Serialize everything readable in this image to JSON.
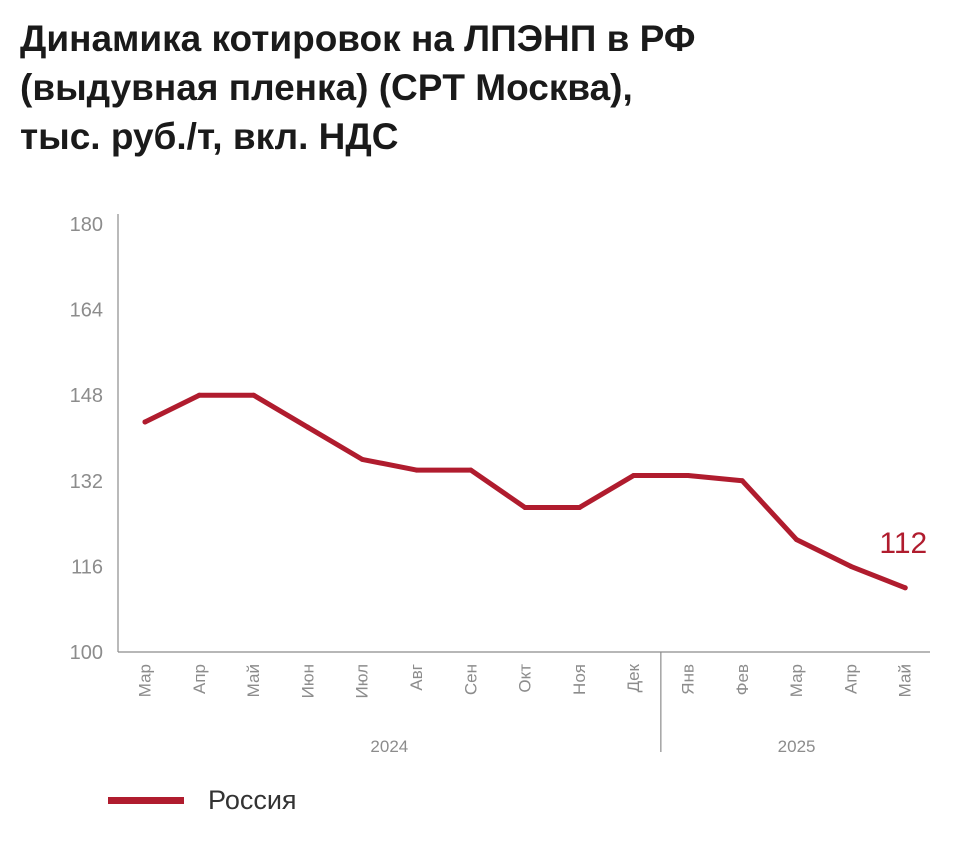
{
  "title_lines": [
    "Динамика котировок на ЛПЭНП в РФ",
    "(выдувная пленка) (CPT Москва),",
    "тыс. руб./т, вкл. НДС"
  ],
  "colors": {
    "series": "#b01c2e",
    "axis": "#8c8c8c",
    "text": "#1a1a1a"
  },
  "chart_data": {
    "type": "line",
    "title": "Динамика котировок на ЛПЭНП в РФ (выдувная пленка) (CPT Москва), тыс. руб./т, вкл. НДС",
    "categories": [
      "Мар",
      "Апр",
      "Май",
      "Июн",
      "Июл",
      "Авг",
      "Сен",
      "Окт",
      "Ноя",
      "Дек",
      "Янв",
      "Фев",
      "Мар",
      "Апр",
      "Май"
    ],
    "year_groups": [
      {
        "label": "2024",
        "count": 10
      },
      {
        "label": "2025",
        "count": 5
      }
    ],
    "series": [
      {
        "name": "Россия",
        "values": [
          143,
          148,
          148,
          142,
          136,
          134,
          134,
          127,
          127,
          133,
          133,
          132,
          121,
          116,
          112
        ]
      }
    ],
    "ylim": [
      100,
      180
    ],
    "yticks": [
      100,
      116,
      132,
      148,
      164,
      180
    ],
    "last_value_label": "112",
    "grid": false,
    "legend": "bottom-left"
  }
}
